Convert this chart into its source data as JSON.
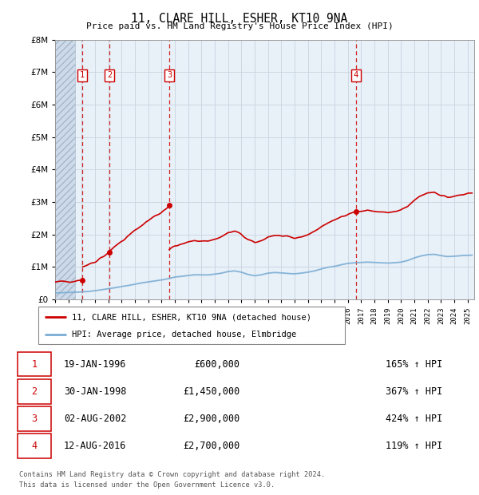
{
  "title": "11, CLARE HILL, ESHER, KT10 9NA",
  "subtitle": "Price paid vs. HM Land Registry's House Price Index (HPI)",
  "footer1": "Contains HM Land Registry data © Crown copyright and database right 2024.",
  "footer2": "This data is licensed under the Open Government Licence v3.0.",
  "legend_line1": "11, CLARE HILL, ESHER, KT10 9NA (detached house)",
  "legend_line2": "HPI: Average price, detached house, Elmbridge",
  "sales": [
    {
      "num": 1,
      "date_label": "19-JAN-1996",
      "date_x": 1996.05,
      "price": 600000,
      "hpi_pct": "165%"
    },
    {
      "num": 2,
      "date_label": "30-JAN-1998",
      "date_x": 1998.08,
      "price": 1450000,
      "hpi_pct": "367%"
    },
    {
      "num": 3,
      "date_label": "02-AUG-2002",
      "date_x": 2002.58,
      "price": 2900000,
      "hpi_pct": "424%"
    },
    {
      "num": 4,
      "date_label": "12-AUG-2016",
      "date_x": 2016.61,
      "price": 2700000,
      "hpi_pct": "119%"
    }
  ],
  "table_rows": [
    [
      "1",
      "19-JAN-1996",
      "£600,000",
      "165% ↑ HPI"
    ],
    [
      "2",
      "30-JAN-1998",
      "£1,450,000",
      "367% ↑ HPI"
    ],
    [
      "3",
      "02-AUG-2002",
      "£2,900,000",
      "424% ↑ HPI"
    ],
    [
      "4",
      "12-AUG-2016",
      "£2,700,000",
      "119% ↑ HPI"
    ]
  ],
  "ylim": [
    0,
    8000000
  ],
  "xlim_start": 1994.0,
  "xlim_end": 2025.5,
  "hatch_end": 1995.5,
  "red_color": "#cc0000",
  "blue_color": "#7aadd4",
  "bg_color": "#e8f0f8",
  "grid_color": "#c8d4e0",
  "hatch_color": "#bbccdd"
}
